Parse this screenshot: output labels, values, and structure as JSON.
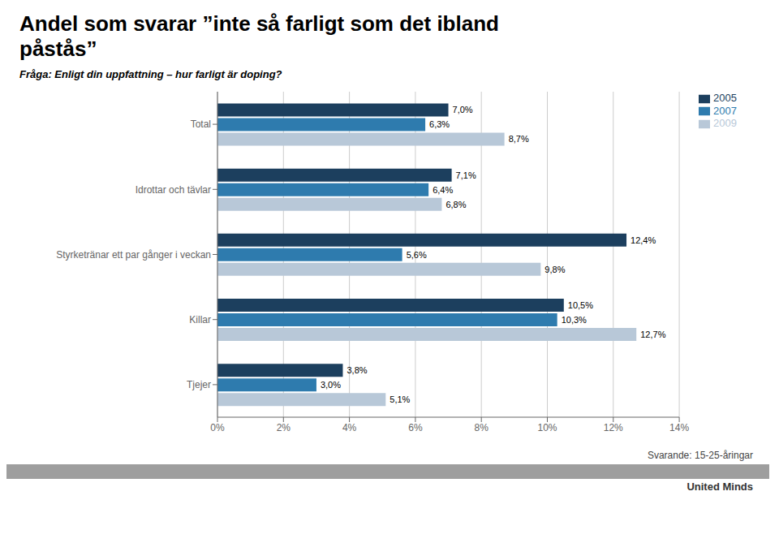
{
  "chart_data": {
    "type": "bar",
    "title": "Andel som svarar ”inte så farligt som det ibland påstås”",
    "subtitle": "Fråga: Enligt din uppfattning – hur farligt är doping?",
    "annotations": [
      "Svarande: 15-25-åringar",
      "United Minds"
    ],
    "orientation": "horizontal",
    "categories": [
      "Total",
      "Idrottar och tävlar",
      "Styrketränar ett par gånger i veckan",
      "Killar",
      "Tjejer"
    ],
    "series": [
      {
        "name": "2005",
        "color": "#1C3F5E",
        "values": [
          7.0,
          7.1,
          12.4,
          10.5,
          3.8
        ],
        "value_labels": [
          "7,0%",
          "7,1%",
          "12,4%",
          "10,5%",
          "3,8%"
        ]
      },
      {
        "name": "2007",
        "color": "#2E7BAE",
        "values": [
          6.3,
          6.4,
          5.6,
          10.3,
          3.0
        ],
        "value_labels": [
          "6,3%",
          "6,4%",
          "5,6%",
          "10,3%",
          "3,0%"
        ]
      },
      {
        "name": "2009",
        "color": "#B8C8D8",
        "values": [
          8.7,
          6.8,
          9.8,
          12.7,
          5.1
        ],
        "value_labels": [
          "8,7%",
          "6,8%",
          "9,8%",
          "12,7%",
          "5,1%"
        ]
      }
    ],
    "xlim": [
      0,
      14
    ],
    "xticks": [
      {
        "value": 0,
        "label": "0%"
      },
      {
        "value": 2,
        "label": "2%"
      },
      {
        "value": 4,
        "label": "4%"
      },
      {
        "value": 6,
        "label": "6%"
      },
      {
        "value": 8,
        "label": "8%"
      },
      {
        "value": 10,
        "label": "10%"
      },
      {
        "value": 12,
        "label": "12%"
      },
      {
        "value": 14,
        "label": "14%"
      }
    ],
    "grid": true,
    "legend": "right",
    "data_labels": true
  }
}
